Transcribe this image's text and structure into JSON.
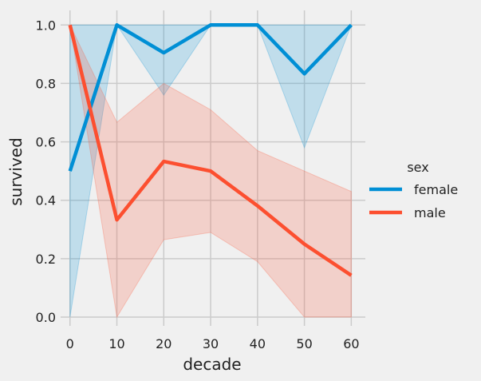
{
  "chart_data": {
    "type": "line",
    "xlabel": "decade",
    "ylabel": "survived",
    "x": [
      0,
      10,
      20,
      30,
      40,
      50,
      60
    ],
    "xlim": [
      -2,
      63
    ],
    "ylim": [
      -0.03,
      1.05
    ],
    "xticks": [
      0,
      10,
      20,
      30,
      40,
      50,
      60
    ],
    "yticks": [
      0.0,
      0.2,
      0.4,
      0.6,
      0.8,
      1.0
    ],
    "xtick_labels": [
      "0",
      "10",
      "20",
      "30",
      "40",
      "50",
      "60"
    ],
    "ytick_labels": [
      "0.0",
      "0.2",
      "0.4",
      "0.6",
      "0.8",
      "1.0"
    ],
    "grid": true,
    "legend": {
      "title": "sex",
      "placement": "right"
    },
    "series": [
      {
        "name": "female",
        "color": "#008fd5",
        "values": [
          0.5,
          1.0,
          0.905,
          1.0,
          1.0,
          0.833,
          1.0
        ],
        "ci_low": [
          0.0,
          1.0,
          0.76,
          1.0,
          1.0,
          0.58,
          1.0
        ],
        "ci_high": [
          1.0,
          1.0,
          1.0,
          1.0,
          1.0,
          1.0,
          1.0
        ]
      },
      {
        "name": "male",
        "color": "#fc4f30",
        "values": [
          1.0,
          0.333,
          0.533,
          0.5,
          0.381,
          0.25,
          0.143
        ],
        "ci_low": [
          1.0,
          0.0,
          0.265,
          0.29,
          0.19,
          0.0,
          0.0
        ],
        "ci_high": [
          1.0,
          0.667,
          0.8,
          0.71,
          0.57,
          0.5,
          0.43
        ]
      }
    ]
  }
}
